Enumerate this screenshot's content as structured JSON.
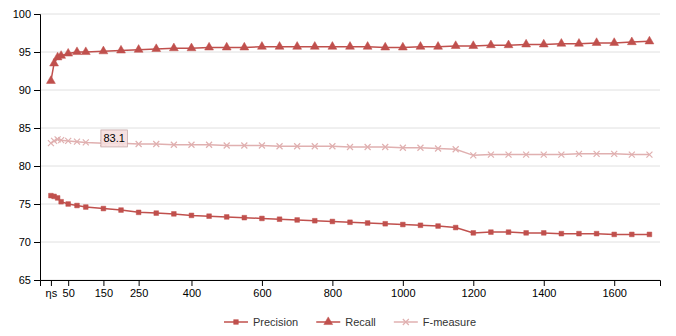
{
  "chart_data": {
    "type": "line",
    "x": [
      1,
      10,
      20,
      30,
      50,
      75,
      100,
      150,
      200,
      250,
      300,
      350,
      400,
      450,
      500,
      550,
      600,
      650,
      700,
      750,
      800,
      850,
      900,
      950,
      1000,
      1050,
      1100,
      1150,
      1200,
      1250,
      1300,
      1350,
      1400,
      1450,
      1500,
      1550,
      1600,
      1650,
      1700
    ],
    "series": [
      {
        "name": "Precision",
        "color": "#c0504d",
        "marker": "square",
        "values": [
          76.1,
          76.0,
          75.8,
          75.3,
          75.0,
          74.8,
          74.6,
          74.4,
          74.2,
          73.9,
          73.8,
          73.7,
          73.5,
          73.4,
          73.3,
          73.2,
          73.1,
          73.0,
          72.9,
          72.8,
          72.7,
          72.6,
          72.5,
          72.4,
          72.3,
          72.2,
          72.1,
          71.9,
          71.2,
          71.3,
          71.3,
          71.2,
          71.2,
          71.1,
          71.1,
          71.1,
          71.0,
          71.0,
          71.0
        ]
      },
      {
        "name": "Recall",
        "color": "#c0504d",
        "marker": "triangle",
        "values": [
          91.2,
          93.5,
          94.3,
          94.5,
          94.8,
          95.0,
          95.0,
          95.1,
          95.2,
          95.3,
          95.4,
          95.5,
          95.5,
          95.6,
          95.6,
          95.6,
          95.7,
          95.7,
          95.7,
          95.7,
          95.7,
          95.7,
          95.7,
          95.6,
          95.6,
          95.7,
          95.7,
          95.8,
          95.8,
          95.9,
          95.9,
          96.0,
          96.0,
          96.1,
          96.1,
          96.2,
          96.2,
          96.3,
          96.4
        ]
      },
      {
        "name": "F-measure",
        "color": "#e0b0b0",
        "marker": "x",
        "values": [
          83.0,
          83.3,
          83.5,
          83.4,
          83.3,
          83.2,
          83.1,
          83.0,
          83.0,
          82.9,
          82.9,
          82.8,
          82.8,
          82.8,
          82.7,
          82.7,
          82.7,
          82.6,
          82.6,
          82.6,
          82.6,
          82.5,
          82.5,
          82.5,
          82.4,
          82.4,
          82.3,
          82.2,
          81.4,
          81.5,
          81.5,
          81.5,
          81.5,
          81.5,
          81.6,
          81.6,
          81.6,
          81.5,
          81.5
        ]
      }
    ],
    "annotations": [
      {
        "text": "83.1",
        "x": 150,
        "y": 83.1
      }
    ],
    "xlim": [
      -30,
      1730
    ],
    "xticks": [
      {
        "value": 1,
        "label": "ηs"
      },
      50,
      150,
      250,
      400,
      600,
      800,
      1000,
      1200,
      1400,
      1600
    ],
    "ylim": [
      65,
      100
    ],
    "yticks": [
      65,
      70,
      75,
      80,
      85,
      90,
      95,
      100
    ],
    "grid": "y",
    "legend": "bottom"
  }
}
